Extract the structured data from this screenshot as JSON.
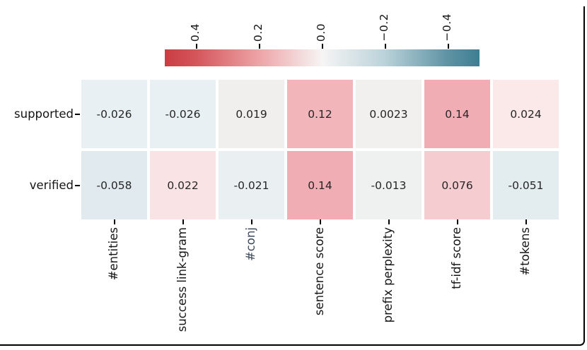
{
  "chart_data": {
    "type": "heatmap",
    "title": "",
    "rows": [
      "supported",
      "verified"
    ],
    "columns": [
      "#entities",
      "success link-gram",
      "#conj",
      "sentence score",
      "prefix perplexity",
      "tf-idf score",
      "#tokens"
    ],
    "values": [
      [
        -0.026,
        -0.026,
        0.019,
        0.12,
        0.0023,
        0.14,
        0.024
      ],
      [
        -0.058,
        0.022,
        -0.021,
        0.14,
        -0.013,
        0.076,
        -0.051
      ]
    ],
    "cell_labels": [
      [
        "-0.026",
        "-0.026",
        "0.019",
        "0.12",
        "0.0023",
        "0.14",
        "0.024"
      ],
      [
        "-0.058",
        "0.022",
        "-0.021",
        "0.14",
        "-0.013",
        "0.076",
        "-0.051"
      ]
    ],
    "cell_colors": [
      [
        "#e9f0f3",
        "#e9f0f3",
        "#f0efed",
        "#f2b5ba",
        "#f1f0ef",
        "#f0adb3",
        "#fbe8e9"
      ],
      [
        "#e1ebef",
        "#f9e3e4",
        "#eaf0f2",
        "#f0adb3",
        "#eff0f0",
        "#f5cccf",
        "#e3edf0"
      ]
    ],
    "column_label_colors": [
      "#151515",
      "#151515",
      "#3d4a5c",
      "#151515",
      "#151515",
      "#151515",
      "#151515"
    ],
    "annotation_color": "#262626",
    "grid": false,
    "colorbar": {
      "position": "top",
      "orientation": "horizontal",
      "axis_range_left_to_right": [
        0.5,
        -0.5
      ],
      "tick_values": [
        0.4,
        0.2,
        0.0,
        -0.2,
        -0.4
      ],
      "tick_labels": [
        "0.4",
        "0.2",
        "0.0",
        "−0.2",
        "−0.4"
      ],
      "gradient_stops": [
        {
          "pos": 0,
          "color": "#c93d43"
        },
        {
          "pos": 10,
          "color": "#d4565b"
        },
        {
          "pos": 30,
          "color": "#eda4a7"
        },
        {
          "pos": 50,
          "color": "#f6f5f4"
        },
        {
          "pos": 70,
          "color": "#bad2da"
        },
        {
          "pos": 90,
          "color": "#5e93a3"
        },
        {
          "pos": 100,
          "color": "#3e7e92"
        }
      ],
      "end_colors": {
        "positive_red": "#c93d43",
        "negative_teal": "#3e7e92"
      }
    }
  }
}
